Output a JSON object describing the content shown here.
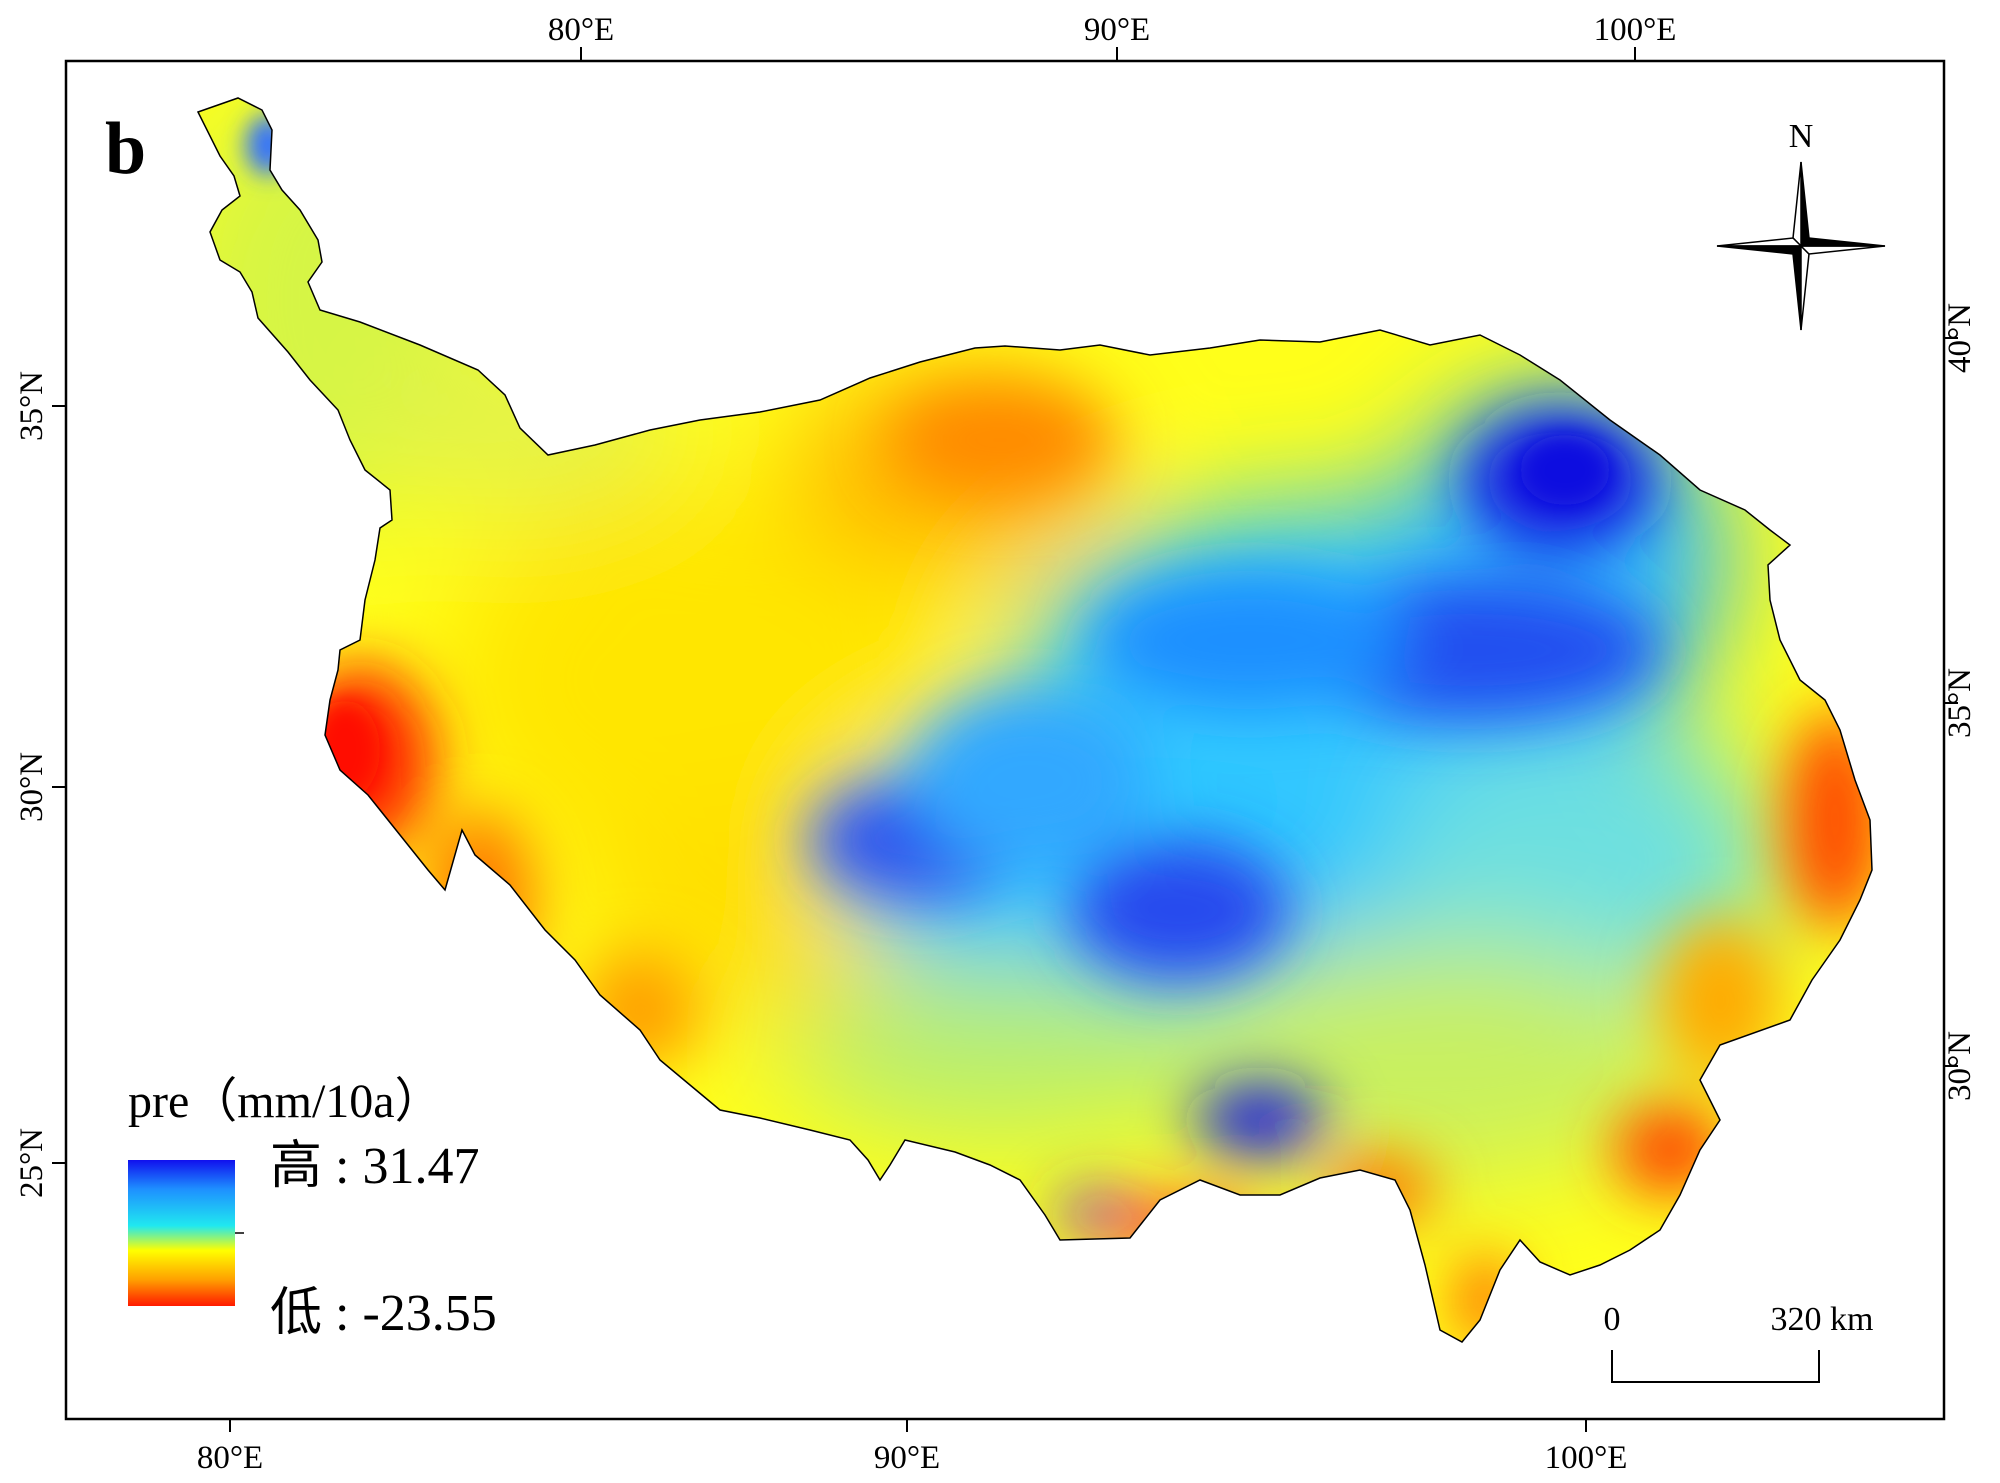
{
  "panel_label": "b",
  "top_axis_labels": [
    "80°E",
    "90°E",
    "100°E"
  ],
  "bottom_axis_labels": [
    "80°E",
    "90°E",
    "100°E"
  ],
  "left_axis_labels": [
    "35°N",
    "30°N",
    "25°N"
  ],
  "right_axis_labels": [
    "40°N",
    "35°N",
    "30°N"
  ],
  "north_arrow": {
    "label": "N",
    "icon": "compass-rose-icon"
  },
  "legend": {
    "title": "pre（mm/10a）",
    "high_label": "高 : 31.47",
    "low_label": "低 : -23.55",
    "ramp_colors": [
      "#1010ee",
      "#1e90ff",
      "#20e8f0",
      "#ffff00",
      "#ffa000",
      "#ff1a00"
    ]
  },
  "scale_bar": {
    "start_label": "0",
    "end_label": "320 km"
  },
  "colors": {
    "high": "#1010ee",
    "mid_high": "#19e6ff",
    "mid": "#ffff00",
    "low": "#ff1a00",
    "border": "#000000"
  }
}
